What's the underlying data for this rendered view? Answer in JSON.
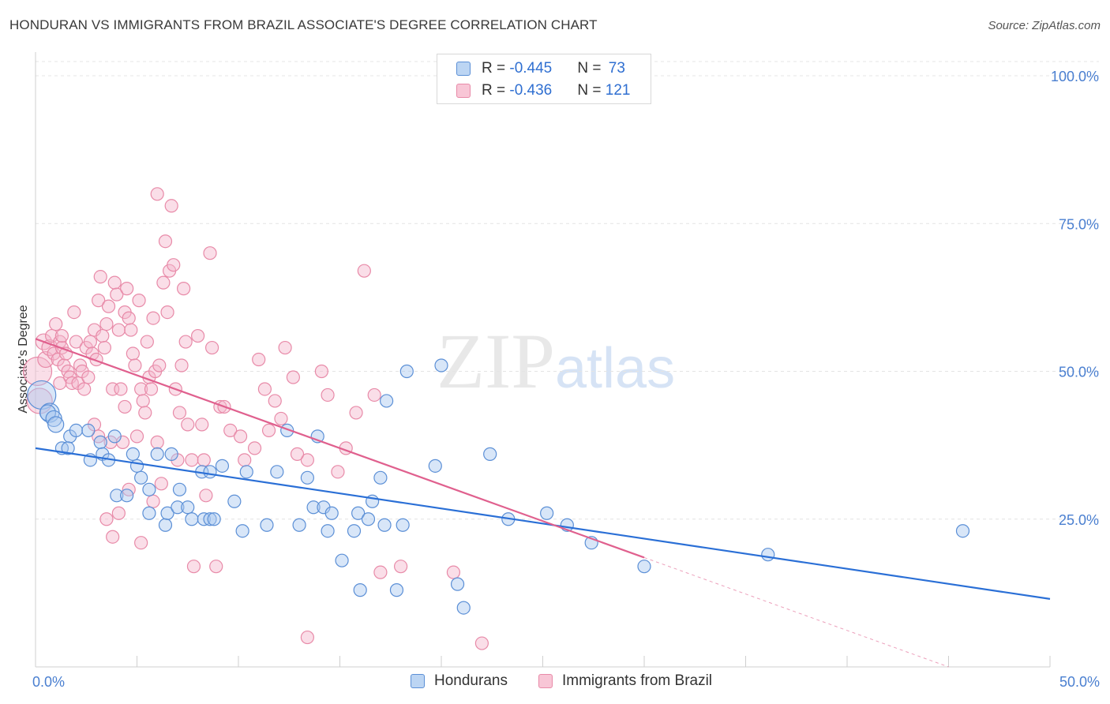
{
  "header": {
    "title": "HONDURAN VS IMMIGRANTS FROM BRAZIL ASSOCIATE'S DEGREE CORRELATION CHART",
    "source": "Source: ZipAtlas.com"
  },
  "watermark": {
    "zip": "ZIP",
    "atlas": "atlas"
  },
  "legend": {
    "rows": [
      {
        "r_label": "R = ",
        "r_value": "-0.445",
        "n_label": "N = ",
        "n_value": "73"
      },
      {
        "r_label": "R = ",
        "r_value": "-0.436",
        "n_label": "N = ",
        "n_value": "121"
      }
    ]
  },
  "bottom_legend": {
    "hondurans": "Hondurans",
    "brazil": "Immigrants from Brazil"
  },
  "colors": {
    "blue_fill": "#a9c8f0",
    "blue_stroke": "#5b8fd6",
    "blue_line": "#2a6fd6",
    "pink_fill": "#f5b6cb",
    "pink_stroke": "#e88aa8",
    "pink_line": "#e0608e",
    "tick": "#4a7fd0"
  },
  "chart_data": {
    "type": "scatter",
    "title": "HONDURAN VS IMMIGRANTS FROM BRAZIL ASSOCIATE'S DEGREE CORRELATION CHART",
    "xlabel": "",
    "ylabel": "Associate's Degree",
    "xlim": [
      0,
      50
    ],
    "ylim": [
      0,
      100
    ],
    "x_tick_labels": [
      "0.0%",
      "50.0%"
    ],
    "y_ticks": [
      25,
      50,
      75,
      100
    ],
    "y_tick_labels": [
      "25.0%",
      "50.0%",
      "75.0%",
      "100.0%"
    ],
    "grid": true,
    "legend_position": "top-center",
    "series": [
      {
        "name": "Hondurans",
        "r": -0.445,
        "n": 73,
        "trend": {
          "x": [
            0,
            50
          ],
          "y": [
            37.0,
            11.5
          ]
        },
        "points": [
          [
            0.3,
            46,
            18
          ],
          [
            0.7,
            43,
            12
          ],
          [
            0.6,
            43,
            10
          ],
          [
            0.9,
            42,
            10
          ],
          [
            1.0,
            41,
            10
          ],
          [
            1.3,
            37,
            8
          ],
          [
            1.7,
            39,
            8
          ],
          [
            2.0,
            40,
            8
          ],
          [
            1.6,
            37,
            8
          ],
          [
            2.6,
            40,
            8
          ],
          [
            2.7,
            35,
            8
          ],
          [
            3.2,
            38,
            8
          ],
          [
            3.3,
            36,
            8
          ],
          [
            3.6,
            35,
            8
          ],
          [
            3.9,
            39,
            8
          ],
          [
            4.0,
            29,
            8
          ],
          [
            4.5,
            29,
            8
          ],
          [
            4.8,
            36,
            8
          ],
          [
            5.0,
            34,
            8
          ],
          [
            5.2,
            32,
            8
          ],
          [
            5.6,
            30,
            8
          ],
          [
            5.6,
            26,
            8
          ],
          [
            6.0,
            36,
            8
          ],
          [
            6.4,
            24,
            8
          ],
          [
            6.5,
            26,
            8
          ],
          [
            6.7,
            36,
            8
          ],
          [
            7.0,
            27,
            8
          ],
          [
            7.1,
            30,
            8
          ],
          [
            7.5,
            27,
            8
          ],
          [
            7.7,
            25,
            8
          ],
          [
            8.2,
            33,
            8
          ],
          [
            8.3,
            25,
            8
          ],
          [
            8.6,
            33,
            8
          ],
          [
            8.6,
            25,
            8
          ],
          [
            8.8,
            25,
            8
          ],
          [
            9.2,
            34,
            8
          ],
          [
            9.8,
            28,
            8
          ],
          [
            10.2,
            23,
            8
          ],
          [
            10.4,
            33,
            8
          ],
          [
            11.4,
            24,
            8
          ],
          [
            11.9,
            33,
            8
          ],
          [
            12.4,
            40,
            8
          ],
          [
            13.0,
            24,
            8
          ],
          [
            13.4,
            32,
            8
          ],
          [
            13.7,
            27,
            8
          ],
          [
            13.9,
            39,
            8
          ],
          [
            14.2,
            27,
            8
          ],
          [
            14.4,
            23,
            8
          ],
          [
            14.6,
            26,
            8
          ],
          [
            15.1,
            18,
            8
          ],
          [
            15.7,
            23,
            8
          ],
          [
            15.9,
            26,
            8
          ],
          [
            16.0,
            13,
            8
          ],
          [
            16.4,
            25,
            8
          ],
          [
            16.6,
            28,
            8
          ],
          [
            17.0,
            32,
            8
          ],
          [
            17.2,
            24,
            8
          ],
          [
            17.3,
            45,
            8
          ],
          [
            17.8,
            13,
            8
          ],
          [
            18.1,
            24,
            8
          ],
          [
            18.3,
            50,
            8
          ],
          [
            19.7,
            34,
            8
          ],
          [
            20.0,
            51,
            8
          ],
          [
            20.8,
            14,
            8
          ],
          [
            21.1,
            10,
            8
          ],
          [
            22.4,
            36,
            8
          ],
          [
            23.3,
            25,
            8
          ],
          [
            25.2,
            26,
            8
          ],
          [
            26.2,
            24,
            8
          ],
          [
            27.4,
            21,
            8
          ],
          [
            30.0,
            17,
            8
          ],
          [
            36.1,
            19,
            8
          ],
          [
            45.7,
            23,
            8
          ]
        ]
      },
      {
        "name": "Immigrants from Brazil",
        "r": -0.436,
        "n": 121,
        "trend": {
          "x": [
            0,
            30
          ],
          "y": [
            55.5,
            18.5
          ]
        },
        "points": [
          [
            0.1,
            50,
            18
          ],
          [
            0.2,
            45,
            16
          ],
          [
            0.4,
            55,
            10
          ],
          [
            0.5,
            52,
            10
          ],
          [
            0.7,
            54,
            10
          ],
          [
            0.8,
            56,
            8
          ],
          [
            0.9,
            53,
            8
          ],
          [
            1.0,
            58,
            8
          ],
          [
            1.1,
            52,
            8
          ],
          [
            1.2,
            55,
            8
          ],
          [
            1.3,
            54,
            8
          ],
          [
            1.3,
            56,
            8
          ],
          [
            1.4,
            51,
            8
          ],
          [
            1.5,
            53,
            8
          ],
          [
            1.6,
            50,
            8
          ],
          [
            1.7,
            49,
            8
          ],
          [
            1.8,
            48,
            8
          ],
          [
            1.9,
            60,
            8
          ],
          [
            2.0,
            55,
            8
          ],
          [
            2.1,
            48,
            8
          ],
          [
            2.2,
            51,
            8
          ],
          [
            2.3,
            50,
            8
          ],
          [
            2.4,
            47,
            8
          ],
          [
            2.5,
            54,
            8
          ],
          [
            2.6,
            49,
            8
          ],
          [
            2.7,
            55,
            8
          ],
          [
            2.8,
            53,
            8
          ],
          [
            2.9,
            57,
            8
          ],
          [
            3.0,
            52,
            8
          ],
          [
            3.1,
            62,
            8
          ],
          [
            3.2,
            66,
            8
          ],
          [
            3.3,
            56,
            8
          ],
          [
            3.4,
            54,
            8
          ],
          [
            3.5,
            58,
            8
          ],
          [
            3.6,
            61,
            8
          ],
          [
            3.7,
            38,
            8
          ],
          [
            3.8,
            47,
            8
          ],
          [
            3.9,
            65,
            8
          ],
          [
            4.0,
            63,
            8
          ],
          [
            4.1,
            57,
            8
          ],
          [
            4.2,
            47,
            8
          ],
          [
            4.3,
            38,
            8
          ],
          [
            4.4,
            60,
            8
          ],
          [
            4.5,
            64,
            8
          ],
          [
            4.6,
            59,
            8
          ],
          [
            4.7,
            57,
            8
          ],
          [
            4.8,
            53,
            8
          ],
          [
            4.9,
            51,
            8
          ],
          [
            5.0,
            39,
            8
          ],
          [
            5.1,
            62,
            8
          ],
          [
            5.2,
            47,
            8
          ],
          [
            5.3,
            45,
            8
          ],
          [
            5.4,
            43,
            8
          ],
          [
            5.5,
            55,
            8
          ],
          [
            5.6,
            49,
            8
          ],
          [
            5.7,
            47,
            8
          ],
          [
            5.8,
            59,
            8
          ],
          [
            5.9,
            50,
            8
          ],
          [
            6.0,
            80,
            8
          ],
          [
            6.1,
            51,
            8
          ],
          [
            6.2,
            31,
            8
          ],
          [
            6.3,
            65,
            8
          ],
          [
            6.4,
            72,
            8
          ],
          [
            6.5,
            60,
            8
          ],
          [
            6.6,
            67,
            8
          ],
          [
            6.7,
            78,
            8
          ],
          [
            6.8,
            68,
            8
          ],
          [
            6.9,
            47,
            8
          ],
          [
            7.0,
            35,
            8
          ],
          [
            7.1,
            43,
            8
          ],
          [
            7.2,
            51,
            8
          ],
          [
            7.3,
            64,
            8
          ],
          [
            7.4,
            55,
            8
          ],
          [
            7.5,
            41,
            8
          ],
          [
            7.7,
            35,
            8
          ],
          [
            7.8,
            17,
            8
          ],
          [
            8.0,
            56,
            8
          ],
          [
            8.2,
            41,
            8
          ],
          [
            8.4,
            29,
            8
          ],
          [
            8.6,
            70,
            8
          ],
          [
            8.7,
            54,
            8
          ],
          [
            8.9,
            17,
            8
          ],
          [
            9.1,
            44,
            8
          ],
          [
            9.6,
            40,
            8
          ],
          [
            10.3,
            35,
            8
          ],
          [
            10.8,
            37,
            8
          ],
          [
            11.0,
            52,
            8
          ],
          [
            11.3,
            47,
            8
          ],
          [
            11.8,
            45,
            8
          ],
          [
            12.1,
            42,
            8
          ],
          [
            12.3,
            54,
            8
          ],
          [
            12.7,
            49,
            8
          ],
          [
            13.4,
            35,
            8
          ],
          [
            14.1,
            50,
            8
          ],
          [
            14.4,
            46,
            8
          ],
          [
            15.3,
            37,
            8
          ],
          [
            15.8,
            43,
            8
          ],
          [
            16.2,
            67,
            8
          ],
          [
            16.7,
            46,
            8
          ],
          [
            17.0,
            16,
            8
          ],
          [
            18.0,
            17,
            8
          ],
          [
            20.6,
            16,
            8
          ],
          [
            22.0,
            4,
            8
          ],
          [
            3.5,
            25,
            8
          ],
          [
            3.8,
            22,
            8
          ],
          [
            4.1,
            26,
            8
          ],
          [
            5.2,
            21,
            8
          ],
          [
            5.8,
            28,
            8
          ],
          [
            6.0,
            38,
            8
          ],
          [
            4.6,
            30,
            8
          ],
          [
            8.3,
            35,
            8
          ],
          [
            9.3,
            44,
            8
          ],
          [
            10.1,
            39,
            8
          ],
          [
            11.5,
            40,
            8
          ],
          [
            12.9,
            36,
            8
          ],
          [
            13.4,
            5,
            8
          ],
          [
            14.9,
            33,
            8
          ],
          [
            2.9,
            41,
            8
          ],
          [
            3.1,
            39,
            8
          ],
          [
            4.4,
            44,
            8
          ],
          [
            1.2,
            48,
            8
          ]
        ]
      }
    ]
  }
}
